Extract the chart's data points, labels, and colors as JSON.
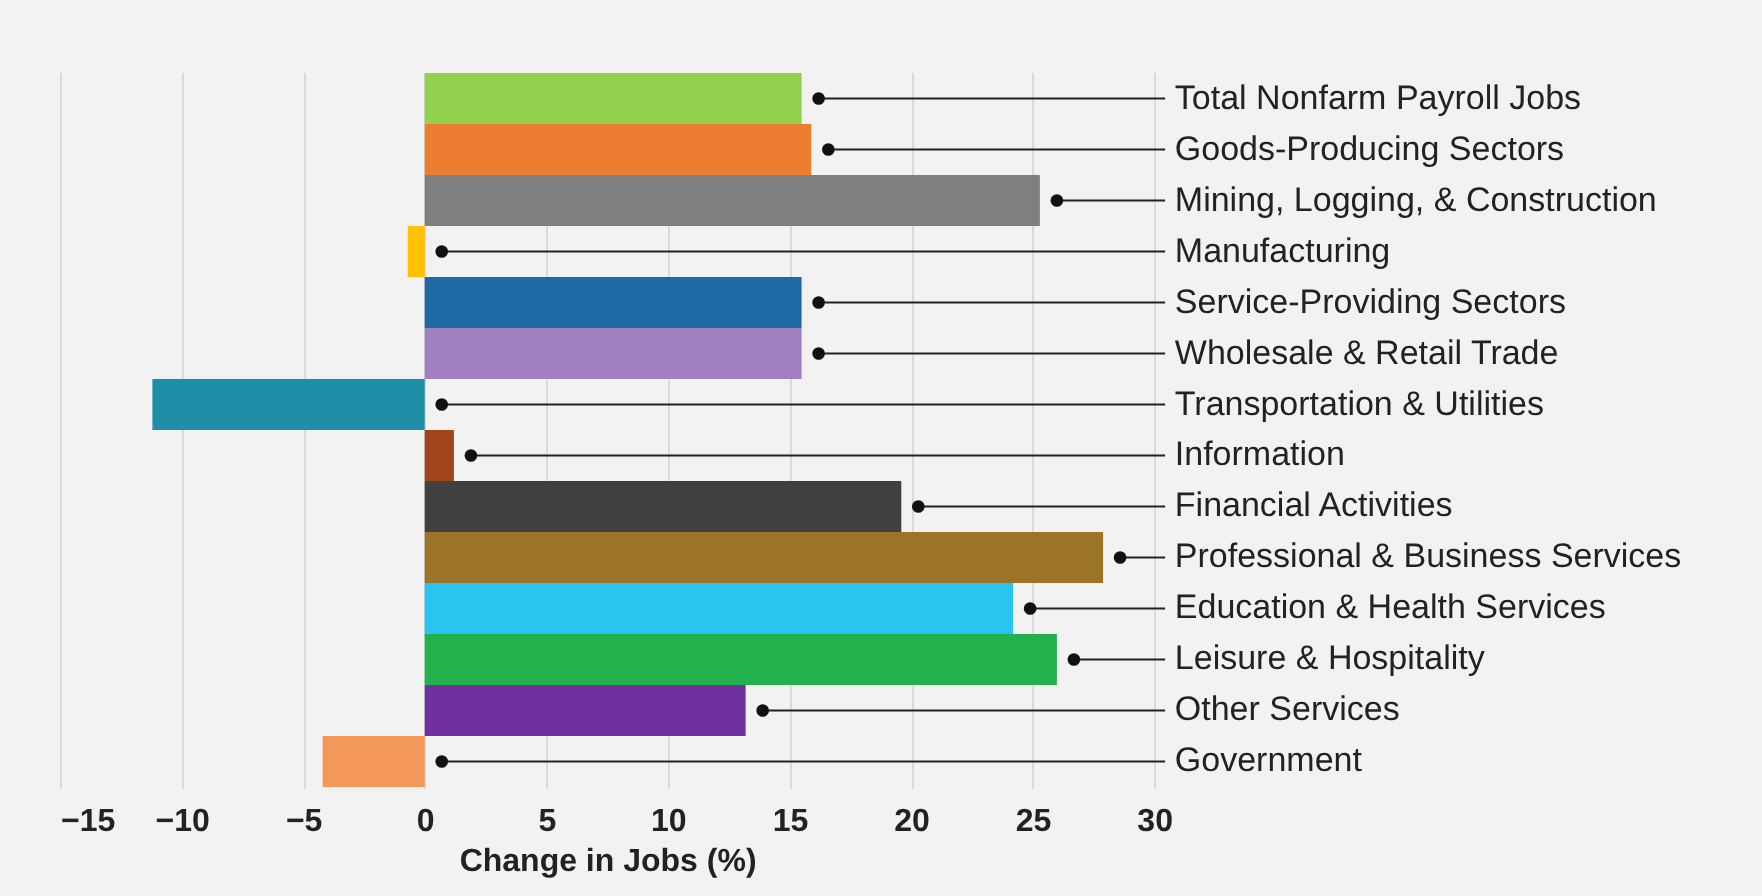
{
  "chart_data": {
    "type": "bar",
    "orientation": "horizontal",
    "xlabel": "Change in Jobs (%)",
    "categories": [
      "Total Nonfarm Payroll Jobs",
      "Goods-Producing Sectors",
      "Mining, Logging, & Construction",
      "Manufacturing",
      "Service-Providing Sectors",
      "Wholesale & Retail Trade",
      "Transportation & Utilities",
      "Information",
      "Financial Activities",
      "Professional & Business Services",
      "Education & Health Services",
      "Leisure & Hospitality",
      "Other Services",
      "Government"
    ],
    "values": [
      15.5,
      15.9,
      25.3,
      -0.7,
      15.5,
      15.5,
      -11.2,
      1.2,
      19.6,
      27.9,
      24.2,
      26.0,
      13.2,
      -4.2
    ],
    "colors": [
      "#92d050",
      "#ed7d31",
      "#7f7f7f",
      "#ffc000",
      "#1f6aa5",
      "#a17fc0",
      "#1f8fa8",
      "#a0441c",
      "#404040",
      "#9c7427",
      "#29c4f0",
      "#22b14c",
      "#7030a0",
      "#f4985a"
    ],
    "xlim": [
      -15,
      55
    ],
    "xticks": [
      -15,
      -10,
      -5,
      0,
      5,
      10,
      15,
      20,
      25,
      30
    ],
    "grid": "x",
    "legend": false
  }
}
